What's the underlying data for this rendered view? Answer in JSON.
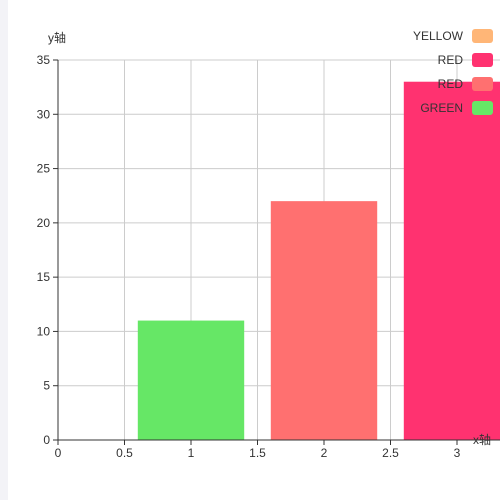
{
  "chart_data": {
    "type": "bar",
    "ylabel": "y轴",
    "xlabel": "x轴",
    "xlim": [
      0,
      3.3
    ],
    "ylim": [
      0,
      35
    ],
    "x_ticks": [
      0,
      0.5,
      1,
      1.5,
      2,
      2.5,
      3
    ],
    "x_tick_labels": [
      "0",
      "0.5",
      "1",
      "1.5",
      "2",
      "2.5",
      "3"
    ],
    "y_ticks": [
      0,
      5,
      10,
      15,
      20,
      25,
      30,
      35
    ],
    "y_tick_labels": [
      "0",
      "5",
      "10",
      "15",
      "20",
      "25",
      "30",
      "35"
    ],
    "grid": true,
    "legend_position": "top-right",
    "bar_width": 0.8,
    "series": [
      {
        "name": "YELLOW",
        "color": "#ffb677",
        "x": [],
        "values": []
      },
      {
        "name": "RED",
        "color": "#ff3270",
        "x": [
          3
        ],
        "values": [
          33
        ]
      },
      {
        "name": "RED",
        "color": "#ff7070",
        "x": [
          2
        ],
        "values": [
          22
        ]
      },
      {
        "name": "GREEN",
        "color": "#66e766",
        "x": [
          1
        ],
        "values": [
          11
        ]
      }
    ]
  }
}
